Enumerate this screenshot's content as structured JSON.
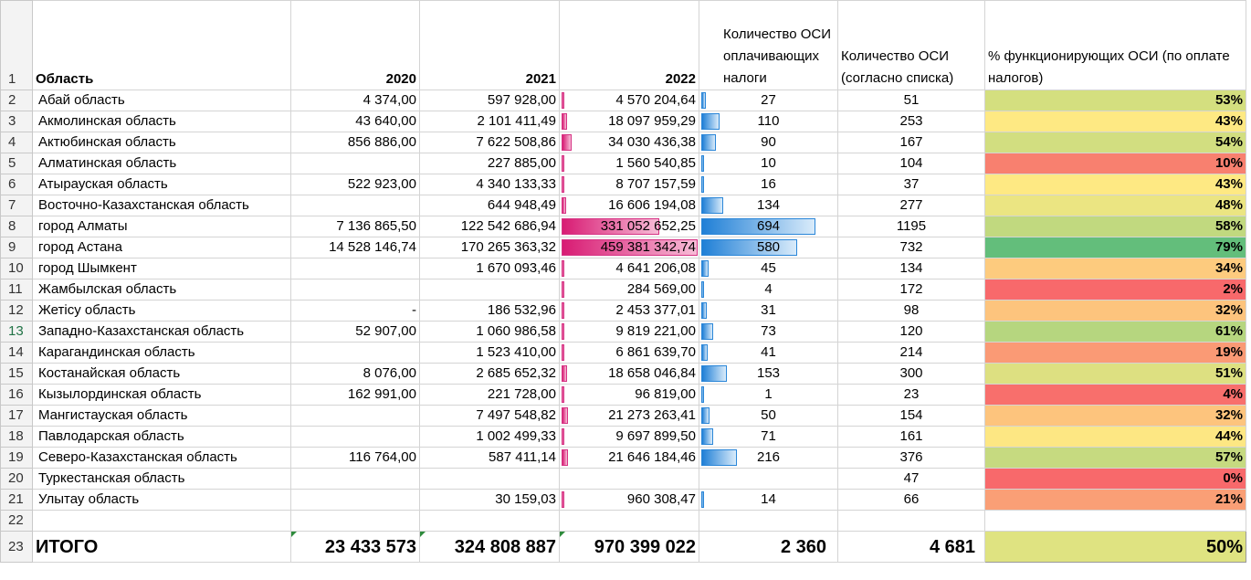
{
  "headers": {
    "row_num": "1",
    "region": "Область",
    "y2020": "2020",
    "y2021": "2021",
    "y2022": "2022",
    "osi_paying": "Количество ОСИ оплачивающих налоги",
    "osi_total": "Количество ОСИ (согласно списка)",
    "pct_functioning": "% функционирующих ОСИ (по оплате налогов)"
  },
  "rows": [
    {
      "n": "2",
      "region": "Абай область",
      "y2020": "4 374,00",
      "y2021": "597 928,00",
      "y2022": "4 570 204,64",
      "paying": "27",
      "total": "51",
      "pct": "53%",
      "color": "#d4df7f",
      "pinkFrac": 0.0099,
      "blueFrac": 0.039
    },
    {
      "n": "3",
      "region": "Акмолинская область",
      "y2020": "43 640,00",
      "y2021": "2 101 411,49",
      "y2022": "18 097 959,29",
      "paying": "110",
      "total": "253",
      "pct": "43%",
      "color": "#fee983",
      "pinkFrac": 0.039,
      "blueFrac": 0.159
    },
    {
      "n": "4",
      "region": "Актюбинская область",
      "y2020": "856 886,00",
      "y2021": "7 622 508,86",
      "y2022": "34 030 436,38",
      "paying": "90",
      "total": "167",
      "pct": "54%",
      "color": "#d2de80",
      "pinkFrac": 0.074,
      "blueFrac": 0.13
    },
    {
      "n": "5",
      "region": "Алматинская область",
      "y2020": "",
      "y2021": "227 885,00",
      "y2022": "1 560 540,85",
      "paying": "10",
      "total": "104",
      "pct": "10%",
      "color": "#f8806f",
      "pinkFrac": 0.0034,
      "blueFrac": 0.014
    },
    {
      "n": "6",
      "region": "Атырауская область",
      "y2020": "522 923,00",
      "y2021": "4 340 133,33",
      "y2022": "8 707 157,59",
      "paying": "16",
      "total": "37",
      "pct": "43%",
      "color": "#fee983",
      "pinkFrac": 0.019,
      "blueFrac": 0.023
    },
    {
      "n": "7",
      "region": "Восточно-Казахстанская область",
      "y2020": "",
      "y2021": "644 948,49",
      "y2022": "16 606 194,08",
      "paying": "134",
      "total": "277",
      "pct": "48%",
      "color": "#ebe582",
      "pinkFrac": 0.036,
      "blueFrac": 0.193
    },
    {
      "n": "8",
      "region": "город Алматы",
      "y2020": "7 136 865,50",
      "y2021": "122 542 686,94",
      "y2022": "331 052 652,25",
      "paying": "694",
      "total": "1195",
      "pct": "58%",
      "color": "#c1d97f",
      "pinkFrac": 0.72,
      "blueFrac": 1.0
    },
    {
      "n": "9",
      "region": "город Астана",
      "y2020": "14 528 146,74",
      "y2021": "170 265 363,32",
      "y2022": "459 381 342,74",
      "paying": "580",
      "total": "732",
      "pct": "79%",
      "color": "#63be7b",
      "pinkFrac": 1.0,
      "blueFrac": 0.836
    },
    {
      "n": "10",
      "region": "город Шымкент",
      "y2020": "",
      "y2021": "1 670 093,46",
      "y2022": "4 641 206,08",
      "paying": "45",
      "total": "134",
      "pct": "34%",
      "color": "#fdcb7e",
      "pinkFrac": 0.01,
      "blueFrac": 0.065
    },
    {
      "n": "11",
      "region": "Жамбылская область",
      "y2020": "",
      "y2021": "",
      "y2022": "284 569,00",
      "paying": "4",
      "total": "172",
      "pct": "2%",
      "color": "#f8696b",
      "pinkFrac": 0.0006,
      "blueFrac": 0.006
    },
    {
      "n": "12",
      "region": "Жетісу область",
      "y2020": "-",
      "y2021": "186 532,96",
      "y2022": "2 453 377,01",
      "paying": "31",
      "total": "98",
      "pct": "32%",
      "color": "#fdc47d",
      "pinkFrac": 0.0053,
      "blueFrac": 0.045
    },
    {
      "n": "13",
      "region": "Западно-Казахстанская область",
      "y2020": "52 907,00",
      "y2021": "1 060 986,58",
      "y2022": "9 819 221,00",
      "paying": "73",
      "total": "120",
      "pct": "61%",
      "color": "#b6d67f",
      "pinkFrac": 0.021,
      "blueFrac": 0.105
    },
    {
      "n": "14",
      "region": "Карагандинская область",
      "y2020": "",
      "y2021": "1 523 410,00",
      "y2022": "6 861 639,70",
      "paying": "41",
      "total": "214",
      "pct": "19%",
      "color": "#fa9a75",
      "pinkFrac": 0.015,
      "blueFrac": 0.059
    },
    {
      "n": "15",
      "region": "Костанайская область",
      "y2020": "8 076,00",
      "y2021": "2 685 652,32",
      "y2022": "18 658 046,84",
      "paying": "153",
      "total": "300",
      "pct": "51%",
      "color": "#dde081",
      "pinkFrac": 0.041,
      "blueFrac": 0.22
    },
    {
      "n": "16",
      "region": "Кызылординская область",
      "y2020": "162 991,00",
      "y2021": "221 728,00",
      "y2022": "96 819,00",
      "paying": "1",
      "total": "23",
      "pct": "4%",
      "color": "#f86f6c",
      "pinkFrac": 0.0002,
      "blueFrac": 0.0015
    },
    {
      "n": "17",
      "region": "Мангистауская область",
      "y2020": "",
      "y2021": "7 497 548,82",
      "y2022": "21 273 263,41",
      "paying": "50",
      "total": "154",
      "pct": "32%",
      "color": "#fdc47d",
      "pinkFrac": 0.046,
      "blueFrac": 0.072
    },
    {
      "n": "18",
      "region": "Павлодарская область",
      "y2020": "",
      "y2021": "1 002 499,33",
      "y2022": "9 697 899,50",
      "paying": "71",
      "total": "161",
      "pct": "44%",
      "color": "#fde783",
      "pinkFrac": 0.021,
      "blueFrac": 0.102
    },
    {
      "n": "19",
      "region": "Северо-Казахстанская область",
      "y2020": "116 764,00",
      "y2021": "587 411,14",
      "y2022": "21 646 184,46",
      "paying": "216",
      "total": "376",
      "pct": "57%",
      "color": "#c6da80",
      "pinkFrac": 0.047,
      "blueFrac": 0.311
    },
    {
      "n": "20",
      "region": "Туркестанская область",
      "y2020": "",
      "y2021": "",
      "y2022": "",
      "paying": "",
      "total": "47",
      "pct": "0%",
      "color": "#f8696b",
      "pinkFrac": 0,
      "blueFrac": 0
    },
    {
      "n": "21",
      "region": "Улытау область",
      "y2020": "",
      "y2021": "30 159,03",
      "y2022": "960 308,47",
      "paying": "14",
      "total": "66",
      "pct": "21%",
      "color": "#fa9f76",
      "pinkFrac": 0.0021,
      "blueFrac": 0.02
    }
  ],
  "empty_row": {
    "n": "22"
  },
  "total": {
    "n": "23",
    "label": "ИТОГО",
    "y2020": "23 433 573",
    "y2021": "324 808 887",
    "y2022": "970 399 022",
    "paying": "2 360",
    "total": "4 681",
    "pct": "50%",
    "color": "#dfe381"
  },
  "selected_row": "13"
}
